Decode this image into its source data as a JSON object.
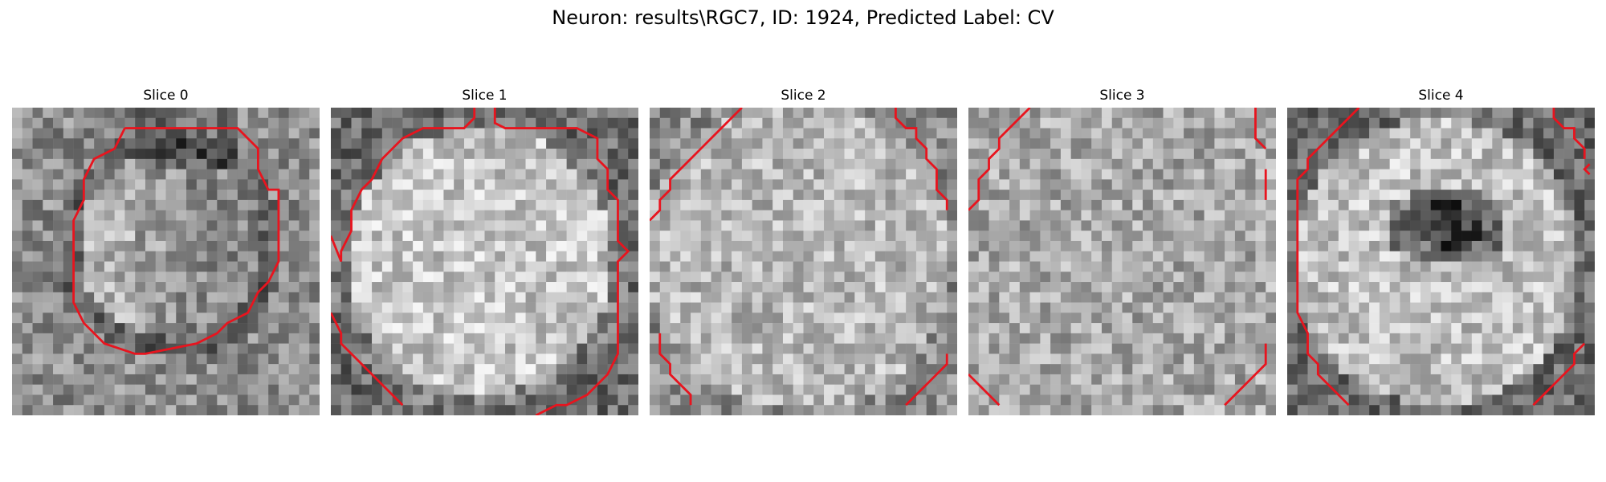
{
  "figure": {
    "title": "Neuron: results\\RGC7, ID: 1924, Predicted Label: CV",
    "panels": [
      {
        "title": "Slice 0"
      },
      {
        "title": "Slice 1"
      },
      {
        "title": "Slice 2"
      },
      {
        "title": "Slice 3"
      },
      {
        "title": "Slice 4"
      }
    ]
  },
  "colors": {
    "contour": "#e8141e",
    "background": "#ffffff"
  }
}
